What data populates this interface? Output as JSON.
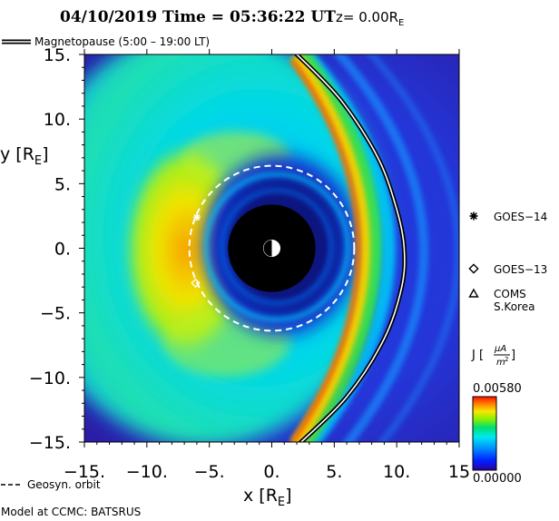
{
  "header": {
    "title_time": "04/10/2019 Time = 05:36:22 UT",
    "title_z_prefix": "z= 0.00R",
    "title_z_sub": "E"
  },
  "legend": {
    "magnetopause_label": "Magnetopause (5:00 – 19:00 LT)",
    "geosyn_label": "Geosyn. orbit"
  },
  "footer": {
    "model_label": "Model at CCMC: BATSRUS"
  },
  "chart_data": {
    "type": "heatmap",
    "quantity": "J",
    "x_label": "x [R",
    "x_label_sub": "E",
    "x_label_end": "]",
    "y_label": "y [R",
    "y_label_sub": "E",
    "y_label_end": "]",
    "xlim": [
      -15,
      15
    ],
    "ylim": [
      -15,
      15
    ],
    "x_ticks": [
      -15,
      -10,
      -5,
      0,
      5,
      10,
      15
    ],
    "x_tick_labels": [
      "−15.",
      "−10.",
      "−5.",
      "0.",
      "5.",
      "10.",
      "15"
    ],
    "y_ticks": [
      15,
      10,
      5,
      0,
      -5,
      -10,
      -15
    ],
    "y_tick_labels": [
      "15.",
      "10.",
      "5.",
      "0.",
      "−5.",
      "−10.",
      "−15."
    ],
    "colorbar": {
      "label_main": "J [",
      "unit_num": "μA",
      "unit_den": "m",
      "unit_den_sup": "2",
      "label_end": "]",
      "max_label": "0.00580",
      "min_label": "0.00000",
      "max": 0.0058,
      "min": 0.0,
      "colors": [
        "#2a00a0",
        "#0020ff",
        "#0090ff",
        "#00e8f0",
        "#00e070",
        "#90f000",
        "#f8e800",
        "#ff8000",
        "#ff1000"
      ]
    },
    "geosyn_orbit_radius": 6.6,
    "earth_shadow_radius": 3.5,
    "magnetopause": [
      [
        1.8,
        15.2
      ],
      [
        5.5,
        11.5
      ],
      [
        8.5,
        7.0
      ],
      [
        10.0,
        3.0
      ],
      [
        10.6,
        0.0
      ],
      [
        10.4,
        -3.0
      ],
      [
        9.0,
        -7.0
      ],
      [
        6.0,
        -11.5
      ],
      [
        1.8,
        -15.5
      ]
    ],
    "satellites": [
      {
        "name": "GOES−14",
        "symbol": "asterisk",
        "x": -6.0,
        "y": 2.4
      },
      {
        "name": "GOES−13",
        "symbol": "diamond",
        "x": -6.1,
        "y": -2.7
      },
      {
        "name": "COMS",
        "name_line2": "S.Korea",
        "symbol": "triangle"
      }
    ],
    "colors": {
      "background_field": "#2f20b0",
      "outer_glow": "#00c8ff",
      "current_peak": "#ff5000",
      "earth": "#000000"
    }
  }
}
